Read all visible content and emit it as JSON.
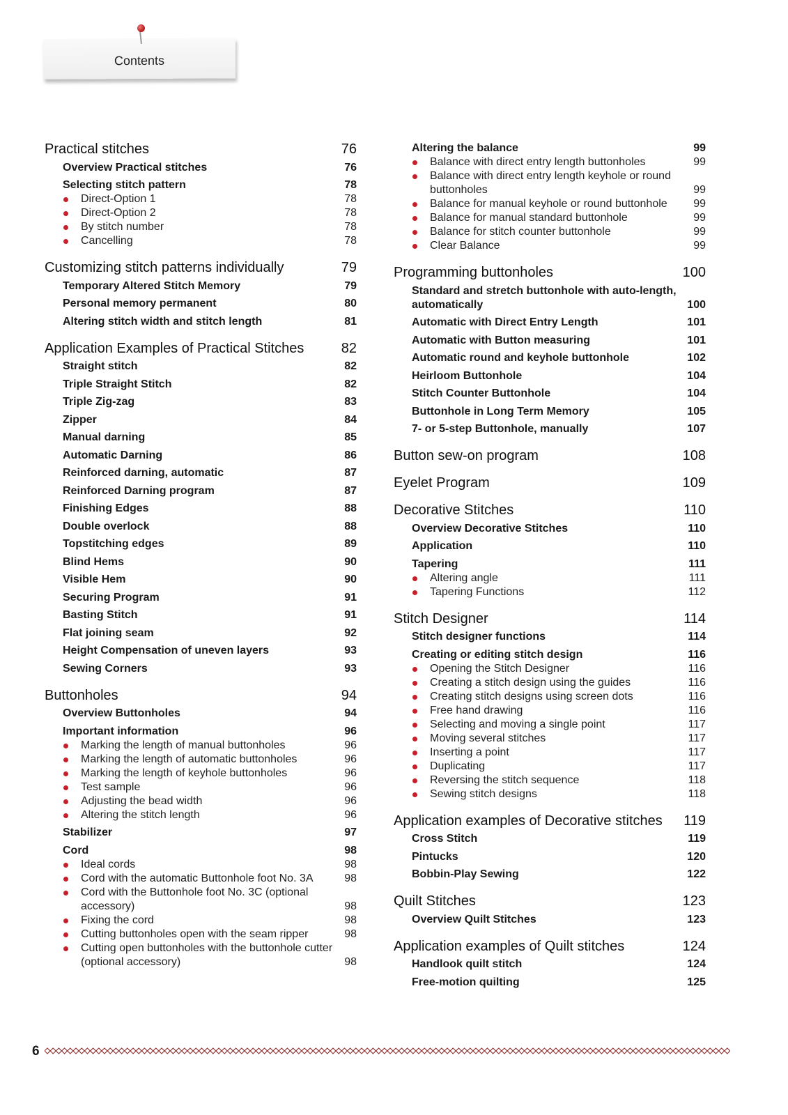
{
  "header": {
    "title": "Contents"
  },
  "footer": {
    "page_number": "6",
    "accent_color": "#8b2a2a"
  },
  "bullet_color": "#c8202a",
  "left": [
    {
      "type": "h1",
      "title": "Practical stitches",
      "page": "76"
    },
    {
      "type": "h2",
      "title": "Overview Practical stitches",
      "page": "76"
    },
    {
      "type": "h2",
      "title": "Selecting stitch pattern",
      "page": "78"
    },
    {
      "type": "b",
      "title": "Direct-Option 1",
      "page": "78"
    },
    {
      "type": "b",
      "title": "Direct-Option 2",
      "page": "78"
    },
    {
      "type": "b",
      "title": "By stitch number",
      "page": "78"
    },
    {
      "type": "b",
      "title": "Cancelling",
      "page": "78"
    },
    {
      "type": "h1",
      "title": "Customizing stitch patterns individually",
      "page": "79"
    },
    {
      "type": "h2",
      "title": "Temporary Altered Stitch Memory",
      "page": "79"
    },
    {
      "type": "h2",
      "title": "Personal memory permanent",
      "page": "80"
    },
    {
      "type": "h2",
      "title": "Altering stitch width and stitch length",
      "page": "81"
    },
    {
      "type": "h1",
      "title": "Application Examples of Practical Stitches",
      "page": "82"
    },
    {
      "type": "h2",
      "title": "Straight stitch",
      "page": "82"
    },
    {
      "type": "h2",
      "title": "Triple Straight Stitch",
      "page": "82"
    },
    {
      "type": "h2",
      "title": "Triple Zig-zag",
      "page": "83"
    },
    {
      "type": "h2",
      "title": "Zipper",
      "page": "84"
    },
    {
      "type": "h2",
      "title": "Manual darning",
      "page": "85"
    },
    {
      "type": "h2",
      "title": "Automatic Darning",
      "page": "86"
    },
    {
      "type": "h2",
      "title": "Reinforced darning, automatic",
      "page": "87"
    },
    {
      "type": "h2",
      "title": "Reinforced Darning program",
      "page": "87"
    },
    {
      "type": "h2",
      "title": "Finishing Edges",
      "page": "88"
    },
    {
      "type": "h2",
      "title": "Double overlock",
      "page": "88"
    },
    {
      "type": "h2",
      "title": "Topstitching edges",
      "page": "89"
    },
    {
      "type": "h2",
      "title": "Blind Hems",
      "page": "90"
    },
    {
      "type": "h2",
      "title": "Visible Hem",
      "page": "90"
    },
    {
      "type": "h2",
      "title": "Securing Program",
      "page": "91"
    },
    {
      "type": "h2",
      "title": "Basting Stitch",
      "page": "91"
    },
    {
      "type": "h2",
      "title": "Flat joining seam",
      "page": "92"
    },
    {
      "type": "h2",
      "title": "Height Compensation of uneven layers",
      "page": "93"
    },
    {
      "type": "h2",
      "title": "Sewing Corners",
      "page": "93"
    },
    {
      "type": "h1",
      "title": "Buttonholes",
      "page": "94"
    },
    {
      "type": "h2",
      "title": "Overview Buttonholes",
      "page": "94"
    },
    {
      "type": "h2",
      "title": "Important information",
      "page": "96"
    },
    {
      "type": "b",
      "title": "Marking the length of manual buttonholes",
      "page": "96"
    },
    {
      "type": "b",
      "title": "Marking the length of automatic buttonholes",
      "page": "96"
    },
    {
      "type": "b",
      "title": "Marking the length of keyhole buttonholes",
      "page": "96"
    },
    {
      "type": "b",
      "title": "Test sample",
      "page": "96"
    },
    {
      "type": "b",
      "title": "Adjusting the bead width",
      "page": "96"
    },
    {
      "type": "b",
      "title": "Altering the stitch length",
      "page": "96"
    },
    {
      "type": "h2",
      "title": "Stabilizer",
      "page": "97"
    },
    {
      "type": "h2",
      "title": "Cord",
      "page": "98"
    },
    {
      "type": "b",
      "title": "Ideal cords",
      "page": "98"
    },
    {
      "type": "b",
      "title": "Cord with the automatic Buttonhole foot No. 3A",
      "page": "98"
    },
    {
      "type": "b",
      "title": "Cord with the Buttonhole foot No. 3C (optional accessory)",
      "page": "98"
    },
    {
      "type": "b",
      "title": "Fixing the cord",
      "page": "98"
    },
    {
      "type": "b",
      "title": "Cutting buttonholes open with the seam ripper",
      "page": "98"
    },
    {
      "type": "b",
      "title": "Cutting open buttonholes with the buttonhole cutter (optional accessory)",
      "page": "98"
    }
  ],
  "right": [
    {
      "type": "h2",
      "title": "Altering the balance",
      "page": "99"
    },
    {
      "type": "b",
      "title": "Balance with direct entry length buttonholes",
      "page": "99"
    },
    {
      "type": "b",
      "title": "Balance with direct entry length keyhole or round buttonholes",
      "page": "99"
    },
    {
      "type": "b",
      "title": "Balance for manual keyhole or round buttonhole",
      "page": "99"
    },
    {
      "type": "b",
      "title": "Balance for manual standard buttonhole",
      "page": "99"
    },
    {
      "type": "b",
      "title": "Balance for stitch counter buttonhole",
      "page": "99"
    },
    {
      "type": "b",
      "title": "Clear Balance",
      "page": "99"
    },
    {
      "type": "h1",
      "title": "Programming buttonholes",
      "page": "100"
    },
    {
      "type": "h2",
      "title": "Standard and stretch buttonhole with auto-length, automatically",
      "page": "100"
    },
    {
      "type": "h2",
      "title": "Automatic with Direct Entry Length",
      "page": "101"
    },
    {
      "type": "h2",
      "title": "Automatic with Button measuring",
      "page": "101"
    },
    {
      "type": "h2",
      "title": "Automatic round and keyhole buttonhole",
      "page": "102"
    },
    {
      "type": "h2",
      "title": "Heirloom Buttonhole",
      "page": "104"
    },
    {
      "type": "h2",
      "title": "Stitch Counter Buttonhole",
      "page": "104"
    },
    {
      "type": "h2",
      "title": "Buttonhole in Long Term Memory",
      "page": "105"
    },
    {
      "type": "h2",
      "title": "7- or 5-step Buttonhole, manually",
      "page": "107"
    },
    {
      "type": "h1",
      "title": "Button sew-on program",
      "page": "108"
    },
    {
      "type": "h1",
      "title": "Eyelet Program",
      "page": "109"
    },
    {
      "type": "h1",
      "title": "Decorative Stitches",
      "page": "110"
    },
    {
      "type": "h2",
      "title": "Overview Decorative Stitches",
      "page": "110"
    },
    {
      "type": "h2",
      "title": "Application",
      "page": "110"
    },
    {
      "type": "h2",
      "title": "Tapering",
      "page": "111"
    },
    {
      "type": "b",
      "title": "Altering angle",
      "page": "111"
    },
    {
      "type": "b",
      "title": "Tapering Functions",
      "page": "112"
    },
    {
      "type": "h1",
      "title": "Stitch Designer",
      "page": "114"
    },
    {
      "type": "h2",
      "title": "Stitch designer functions",
      "page": "114"
    },
    {
      "type": "h2",
      "title": "Creating or editing stitch design",
      "page": "116"
    },
    {
      "type": "b",
      "title": "Opening the Stitch Designer",
      "page": "116"
    },
    {
      "type": "b",
      "title": "Creating a stitch design using the guides",
      "page": "116"
    },
    {
      "type": "b",
      "title": "Creating stitch designs using screen dots",
      "page": "116"
    },
    {
      "type": "b",
      "title": "Free hand drawing",
      "page": "116"
    },
    {
      "type": "b",
      "title": "Selecting and moving a single point",
      "page": "117"
    },
    {
      "type": "b",
      "title": "Moving several stitches",
      "page": "117"
    },
    {
      "type": "b",
      "title": "Inserting a point",
      "page": "117"
    },
    {
      "type": "b",
      "title": "Duplicating",
      "page": "117"
    },
    {
      "type": "b",
      "title": "Reversing the stitch sequence",
      "page": "118"
    },
    {
      "type": "b",
      "title": "Sewing stitch designs",
      "page": "118"
    },
    {
      "type": "h1",
      "title": "Application examples of Decorative stitches",
      "page": "119"
    },
    {
      "type": "h2",
      "title": "Cross Stitch",
      "page": "119"
    },
    {
      "type": "h2",
      "title": "Pintucks",
      "page": "120"
    },
    {
      "type": "h2",
      "title": "Bobbin-Play Sewing",
      "page": "122"
    },
    {
      "type": "h1",
      "title": "Quilt Stitches",
      "page": "123"
    },
    {
      "type": "h2",
      "title": "Overview Quilt Stitches",
      "page": "123"
    },
    {
      "type": "h1",
      "title": "Application examples of Quilt stitches",
      "page": "124"
    },
    {
      "type": "h2",
      "title": "Handlook quilt stitch",
      "page": "124"
    },
    {
      "type": "h2",
      "title": "Free-motion quilting",
      "page": "125"
    }
  ]
}
